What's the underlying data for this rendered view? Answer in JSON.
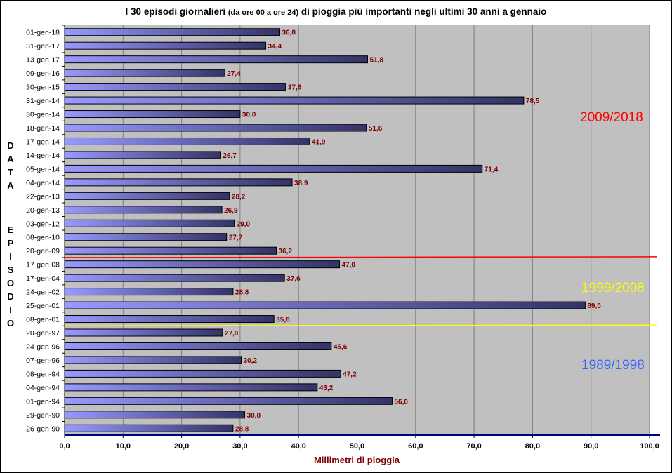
{
  "chart_data": {
    "type": "bar",
    "orientation": "horizontal",
    "title": {
      "main_a": "I 30 episodi giornalieri",
      "main_small": "(da ore 00 a ore 24)",
      "main_b": "di pioggia più importanti negli ultimi 30 anni a gennaio"
    },
    "xlabel": "Millimetri di pioggia",
    "ylabel_top": "DATA",
    "ylabel_bottom": "EPISODIO",
    "xlim": [
      0,
      100
    ],
    "xticks": [
      "0,0",
      "10,0",
      "20,0",
      "30,0",
      "40,0",
      "50,0",
      "60,0",
      "70,0",
      "80,0",
      "90,0",
      "100,0"
    ],
    "grid": "vertical",
    "categories": [
      "01-gen-18",
      "31-gen-17",
      "13-gen-17",
      "09-gen-16",
      "30-gen-15",
      "31-gen-14",
      "30-gen-14",
      "18-gen-14",
      "17-gen-14",
      "14-gen-14",
      "05-gen-14",
      "04-gen-14",
      "22-gen-13",
      "20-gen-13",
      "03-gen-12",
      "08-gen-10",
      "20-gen-09",
      "17-gen-08",
      "17-gen-04",
      "24-gen-02",
      "25-gen-01",
      "08-gen-01",
      "20-gen-97",
      "24-gen-96",
      "07-gen-96",
      "08-gen-94",
      "04-gen-94",
      "01-gen-94",
      "29-gen-90",
      "26-gen-90"
    ],
    "values": [
      36.8,
      34.4,
      51.8,
      27.4,
      37.8,
      78.5,
      30.0,
      51.6,
      41.9,
      26.7,
      71.4,
      38.9,
      28.2,
      26.9,
      29.0,
      27.7,
      36.2,
      47.0,
      37.6,
      28.8,
      89.0,
      35.8,
      27.0,
      45.6,
      30.2,
      47.2,
      43.2,
      56.0,
      30.8,
      28.8
    ],
    "value_labels": [
      "36,8",
      "34,4",
      "51,8",
      "27,4",
      "37,8",
      "78,5",
      "30,0",
      "51,6",
      "41,9",
      "26,7",
      "71,4",
      "38,9",
      "28,2",
      "26,9",
      "29,0",
      "27,7",
      "36,2",
      "47,0",
      "37,6",
      "28,8",
      "89,0",
      "35,8",
      "27,0",
      "45,6",
      "30,2",
      "47,2",
      "43,2",
      "56,0",
      "30,8",
      "28,8"
    ],
    "periods": [
      {
        "label": "2009/2018",
        "color": "#ff0000"
      },
      {
        "label": "1999/2008",
        "color": "#ffff00"
      },
      {
        "label": "1989/1998",
        "color": "#3366ff"
      }
    ],
    "separators": [
      {
        "after_category": "20-gen-09",
        "color": "#ff0000"
      },
      {
        "after_category": "08-gen-01",
        "color": "#ffff00"
      }
    ],
    "colors": {
      "plot_background": "#c0c0c0",
      "bar_start": "#9999ff",
      "bar_end": "#333366",
      "value_label": "#800000",
      "grid": "#808080"
    }
  }
}
